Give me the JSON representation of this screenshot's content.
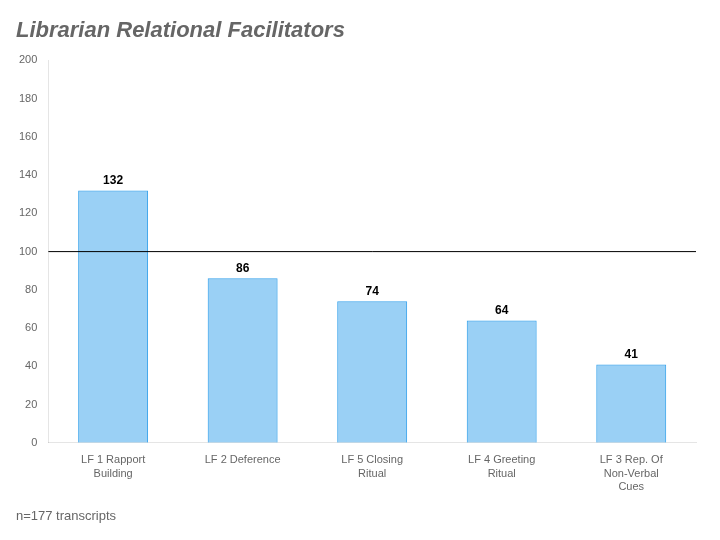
{
  "chart_data": {
    "type": "bar",
    "title": "Librarian Relational Facilitators",
    "categories": [
      "LF 1 Rapport\nBuilding",
      "LF 2 Deference",
      "LF 5 Closing\nRitual",
      "LF 4 Greeting\nRitual",
      "LF 3 Rep. Of\nNon-Verbal\nCues"
    ],
    "values": [
      132,
      86,
      74,
      64,
      41
    ],
    "ylim": [
      0,
      200
    ],
    "yticks": [
      0,
      20,
      40,
      60,
      80,
      100,
      120,
      140,
      160,
      180,
      200
    ],
    "grid": false,
    "data_labels": true,
    "reference_line": 100,
    "footnote": "n=177 transcripts"
  }
}
